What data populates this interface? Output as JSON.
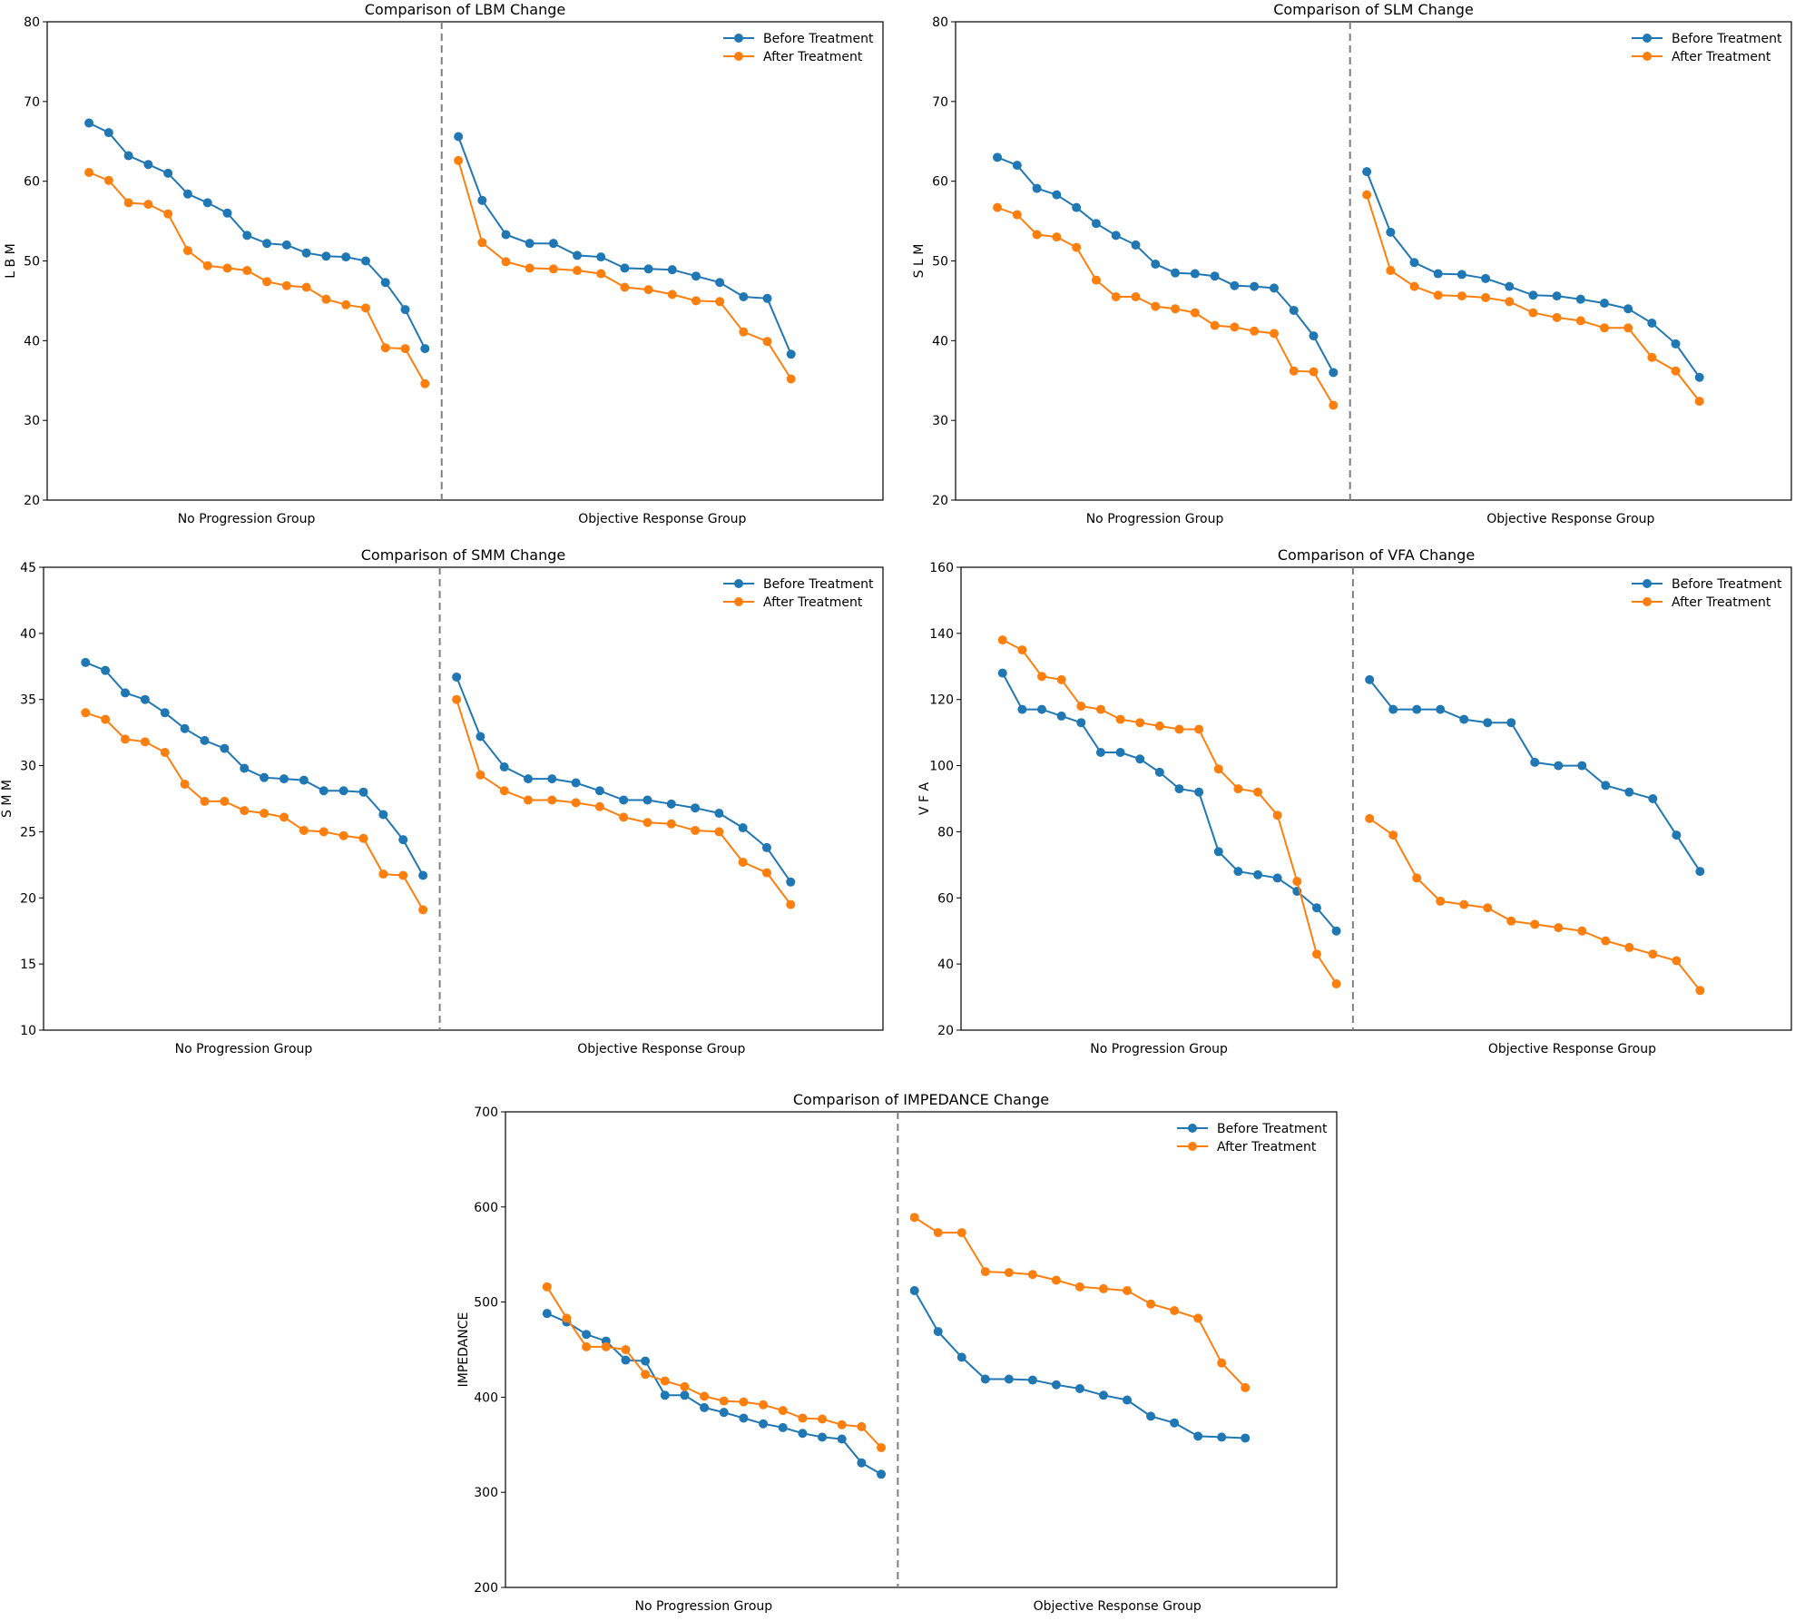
{
  "colors": {
    "before": "#1f77b4",
    "after": "#ff7f0e",
    "divider": "#808080",
    "axis": "#000000"
  },
  "chart_data": [
    {
      "type": "line",
      "title": "Comparison of LBM Change",
      "ylabel": "L B M",
      "ylim": [
        20,
        80
      ],
      "yticks": [
        20,
        30,
        40,
        50,
        60,
        70,
        80
      ],
      "groups": [
        "No Progression Group",
        "Objective Response Group"
      ],
      "legend": [
        "Before Treatment",
        "After Treatment"
      ],
      "legend_position": "top-right",
      "series": [
        {
          "name": "Before Treatment",
          "group1": [
            67.3,
            66.1,
            63.2,
            62.1,
            61.0,
            58.4,
            57.3,
            56.0,
            53.2,
            52.2,
            52.0,
            51.0,
            50.6,
            50.5,
            50.0,
            47.3,
            43.9,
            39.0
          ],
          "group2": [
            65.6,
            57.6,
            53.3,
            52.2,
            52.2,
            50.7,
            50.5,
            49.1,
            49.0,
            48.9,
            48.1,
            47.3,
            45.5,
            45.3,
            38.3
          ]
        },
        {
          "name": "After Treatment",
          "group1": [
            61.1,
            60.1,
            57.3,
            57.1,
            55.9,
            51.3,
            49.4,
            49.1,
            48.8,
            47.4,
            46.9,
            46.7,
            45.2,
            44.5,
            44.1,
            39.1,
            39.0,
            34.6
          ],
          "group2": [
            62.6,
            52.3,
            49.9,
            49.1,
            49.0,
            48.8,
            48.4,
            46.7,
            46.4,
            45.8,
            45.0,
            44.9,
            41.1,
            39.9,
            35.2
          ]
        }
      ]
    },
    {
      "type": "line",
      "title": "Comparison of SLM Change",
      "ylabel": "S L M",
      "ylim": [
        20,
        80
      ],
      "yticks": [
        20,
        30,
        40,
        50,
        60,
        70,
        80
      ],
      "groups": [
        "No Progression Group",
        "Objective Response Group"
      ],
      "legend": [
        "Before Treatment",
        "After Treatment"
      ],
      "legend_position": "top-right",
      "series": [
        {
          "name": "Before Treatment",
          "group1": [
            63.0,
            62.0,
            59.1,
            58.3,
            56.7,
            54.7,
            53.2,
            52.0,
            49.6,
            48.5,
            48.4,
            48.1,
            46.9,
            46.8,
            46.6,
            43.8,
            40.6,
            36.0
          ],
          "group2": [
            61.2,
            53.6,
            49.8,
            48.4,
            48.3,
            47.8,
            46.8,
            45.7,
            45.6,
            45.2,
            44.7,
            44.0,
            42.2,
            39.6,
            35.4
          ]
        },
        {
          "name": "After Treatment",
          "group1": [
            56.7,
            55.8,
            53.3,
            53.0,
            51.7,
            47.6,
            45.5,
            45.5,
            44.3,
            44.0,
            43.5,
            41.9,
            41.7,
            41.2,
            40.9,
            36.2,
            36.1,
            31.9
          ],
          "group2": [
            58.3,
            48.8,
            46.8,
            45.7,
            45.6,
            45.4,
            44.9,
            43.5,
            42.9,
            42.5,
            41.6,
            41.6,
            37.9,
            36.2,
            32.4
          ]
        }
      ]
    },
    {
      "type": "line",
      "title": "Comparison of SMM Change",
      "ylabel": "S M M",
      "ylim": [
        10,
        45
      ],
      "yticks": [
        10,
        15,
        20,
        25,
        30,
        35,
        40,
        45
      ],
      "groups": [
        "No Progression Group",
        "Objective Response Group"
      ],
      "legend": [
        "Before Treatment",
        "After Treatment"
      ],
      "legend_position": "top-right",
      "series": [
        {
          "name": "Before Treatment",
          "group1": [
            37.8,
            37.2,
            35.5,
            35.0,
            34.0,
            32.8,
            31.9,
            31.3,
            29.8,
            29.1,
            29.0,
            28.9,
            28.1,
            28.1,
            28.0,
            26.3,
            24.4,
            21.7
          ],
          "group2": [
            36.7,
            32.2,
            29.9,
            29.0,
            29.0,
            28.7,
            28.1,
            27.4,
            27.4,
            27.1,
            26.8,
            26.4,
            25.3,
            23.8,
            21.2
          ]
        },
        {
          "name": "After Treatment",
          "group1": [
            34.0,
            33.5,
            32.0,
            31.8,
            31.0,
            28.6,
            27.3,
            27.3,
            26.6,
            26.4,
            26.1,
            25.1,
            25.0,
            24.7,
            24.5,
            21.8,
            21.7,
            19.1
          ],
          "group2": [
            35.0,
            29.3,
            28.1,
            27.4,
            27.4,
            27.2,
            26.9,
            26.1,
            25.7,
            25.6,
            25.1,
            25.0,
            22.7,
            21.9,
            19.5
          ]
        }
      ]
    },
    {
      "type": "line",
      "title": "Comparison of VFA Change",
      "ylabel": "V F A",
      "ylim": [
        20,
        160
      ],
      "yticks": [
        20,
        40,
        60,
        80,
        100,
        120,
        140,
        160
      ],
      "groups": [
        "No Progression Group",
        "Objective Response Group"
      ],
      "legend": [
        "Before Treatment",
        "After Treatment"
      ],
      "legend_position": "top-right",
      "series": [
        {
          "name": "Before Treatment",
          "group1": [
            128,
            117,
            117,
            115,
            113,
            104,
            104,
            102,
            98,
            93,
            92,
            74,
            68,
            67,
            66,
            62,
            57,
            50
          ],
          "group2": [
            126,
            117,
            117,
            117,
            114,
            113,
            113,
            101,
            100,
            100,
            94,
            92,
            90,
            79,
            68
          ]
        },
        {
          "name": "After Treatment",
          "group1": [
            138,
            135,
            127,
            126,
            118,
            117,
            114,
            113,
            112,
            111,
            111,
            99,
            93,
            92,
            85,
            65,
            43,
            34
          ],
          "group2": [
            84,
            79,
            66,
            59,
            58,
            57,
            53,
            52,
            51,
            50,
            47,
            45,
            43,
            41,
            32
          ]
        }
      ]
    },
    {
      "type": "line",
      "title": "Comparison of IMPEDANCE Change",
      "ylabel": "IMPEDANCE",
      "ylim": [
        200,
        700
      ],
      "yticks": [
        200,
        300,
        400,
        500,
        600,
        700
      ],
      "groups": [
        "No Progression Group",
        "Objective Response Group"
      ],
      "legend": [
        "Before Treatment",
        "After Treatment"
      ],
      "legend_position": "top-right",
      "series": [
        {
          "name": "Before Treatment",
          "group1": [
            488,
            479,
            466,
            459,
            439,
            438,
            402,
            402,
            389,
            384,
            378,
            372,
            368,
            362,
            358,
            356,
            331,
            319
          ],
          "group2": [
            512,
            469,
            442,
            419,
            419,
            418,
            413,
            409,
            402,
            397,
            380,
            373,
            359,
            358,
            357
          ]
        },
        {
          "name": "After Treatment",
          "group1": [
            516,
            483,
            453,
            453,
            450,
            424,
            417,
            411,
            401,
            396,
            395,
            392,
            386,
            378,
            377,
            371,
            369,
            347
          ],
          "group2": [
            589,
            573,
            573,
            532,
            531,
            529,
            523,
            516,
            514,
            512,
            498,
            491,
            483,
            436,
            410
          ]
        }
      ]
    }
  ]
}
